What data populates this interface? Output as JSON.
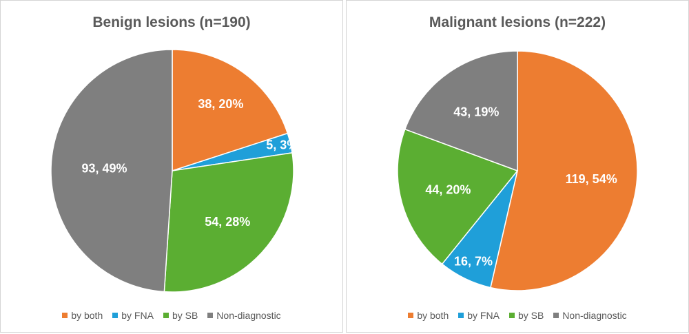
{
  "chart_data": [
    {
      "type": "pie",
      "title": "Benign lesions (n=190)",
      "categories": [
        "by both",
        "by FNA",
        "by SB",
        "Non-diagnostic"
      ],
      "values": [
        38,
        5,
        54,
        93
      ],
      "labels": [
        "38, 20%",
        "5, 3%",
        "54, 28%",
        "93, 49%"
      ],
      "colors": [
        "#ED7D31",
        "#1F9FD9",
        "#5BAE32",
        "#7F7F7F"
      ],
      "legend": "bottom"
    },
    {
      "type": "pie",
      "title": "Malignant lesions (n=222)",
      "categories": [
        "by both",
        "by FNA",
        "by SB",
        "Non-diagnostic"
      ],
      "values": [
        119,
        16,
        44,
        43
      ],
      "labels": [
        "119, 54%",
        "16, 7%",
        "44, 20%",
        "43, 19%"
      ],
      "colors": [
        "#ED7D31",
        "#1F9FD9",
        "#5BAE32",
        "#7F7F7F"
      ],
      "legend": "bottom"
    }
  ]
}
